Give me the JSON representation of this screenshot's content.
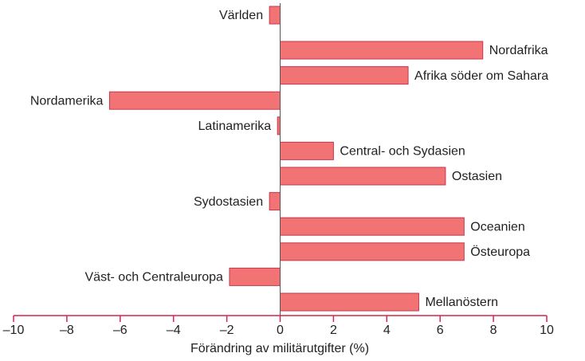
{
  "chart_data": {
    "type": "barh",
    "categories": [
      "Världen",
      "Nordafrika",
      "Afrika söder om Sahara",
      "Nordamerika",
      "Latinamerika",
      "Central- och Sydasien",
      "Ostasien",
      "Sydostasien",
      "Oceanien",
      "Östeuropa",
      "Väst- och Centraleuropa",
      "Mellanöstern"
    ],
    "values": [
      -0.4,
      7.6,
      4.8,
      -6.4,
      -0.1,
      2.0,
      6.2,
      -0.4,
      6.9,
      6.9,
      -1.9,
      5.2
    ],
    "color": "#f27373",
    "xlabel": "Förändring av militärutgifter (%)",
    "xlim": [
      -10,
      10
    ],
    "xticks": [
      {
        "value": -10,
        "label": "–10"
      },
      {
        "value": -8,
        "label": "–8"
      },
      {
        "value": -6,
        "label": "–6"
      },
      {
        "value": -4,
        "label": "–4"
      },
      {
        "value": -2,
        "label": "–2"
      },
      0,
      2,
      4,
      6,
      8,
      10
    ]
  }
}
